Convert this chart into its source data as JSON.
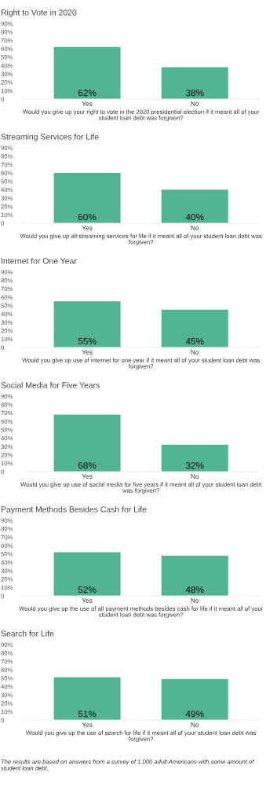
{
  "chart_data": [
    {
      "type": "bar",
      "title": "Right to Vote in 2020",
      "xlabel": "Would you give up your right to vote in the 2020 presidential election if it meant all of your student loan debt was forgiven?",
      "categories": [
        "Yes",
        "No"
      ],
      "values": [
        62,
        38
      ],
      "value_labels": [
        "62%",
        "38%"
      ],
      "color": "#52b592",
      "ylim": [
        0,
        90
      ],
      "yticks": [
        0,
        {
          "value": 10,
          "label": "10%"
        },
        {
          "value": 20,
          "label": "20%"
        },
        {
          "value": 30,
          "label": "30%"
        },
        {
          "value": 40,
          "label": "40%"
        },
        {
          "value": 50,
          "label": "50%"
        },
        {
          "value": 60,
          "label": "60%"
        },
        {
          "value": 70,
          "label": "70%"
        },
        {
          "value": 80,
          "label": "80%"
        },
        {
          "value": 90,
          "label": "90%"
        }
      ],
      "grid": false,
      "legend": false
    },
    {
      "type": "bar",
      "title": "Streaming Services for Life",
      "xlabel": "Would you give up all streaming services for life if it meant all of your student loan debt was forgiven?",
      "categories": [
        "Yes",
        "No"
      ],
      "values": [
        60,
        40
      ],
      "value_labels": [
        "60%",
        "40%"
      ],
      "color": "#52b592",
      "ylim": [
        0,
        90
      ],
      "yticks": [
        0,
        {
          "value": 10,
          "label": "10%"
        },
        {
          "value": 20,
          "label": "20%"
        },
        {
          "value": 30,
          "label": "30%"
        },
        {
          "value": 40,
          "label": "40%"
        },
        {
          "value": 50,
          "label": "50%"
        },
        {
          "value": 60,
          "label": "60%"
        },
        {
          "value": 70,
          "label": "70%"
        },
        {
          "value": 80,
          "label": "80%"
        },
        {
          "value": 90,
          "label": "90%"
        }
      ],
      "grid": false,
      "legend": false
    },
    {
      "type": "bar",
      "title": "Internet for One Year",
      "xlabel": "Would you give up use of internet for one year if it meant all of your student loan debt was forgiven?",
      "categories": [
        "Yes",
        "No"
      ],
      "values": [
        55,
        45
      ],
      "value_labels": [
        "55%",
        "45%"
      ],
      "color": "#52b592",
      "ylim": [
        0,
        90
      ],
      "yticks": [
        0,
        {
          "value": 10,
          "label": "10%"
        },
        {
          "value": 20,
          "label": "20%"
        },
        {
          "value": 30,
          "label": "30%"
        },
        {
          "value": 40,
          "label": "40%"
        },
        {
          "value": 50,
          "label": "50%"
        },
        {
          "value": 60,
          "label": "60%"
        },
        {
          "value": 70,
          "label": "70%"
        },
        {
          "value": 80,
          "label": "80%"
        },
        {
          "value": 90,
          "label": "90%"
        }
      ],
      "grid": false,
      "legend": false
    },
    {
      "type": "bar",
      "title": "Social Media for Five Years",
      "xlabel": "Would you give up use of social media for five years if it meant all of your student loan debt was forgiven?",
      "categories": [
        "Yes",
        "No"
      ],
      "values": [
        68,
        32
      ],
      "value_labels": [
        "68%",
        "32%"
      ],
      "color": "#52b592",
      "ylim": [
        0,
        90
      ],
      "yticks": [
        0,
        {
          "value": 10,
          "label": "10%"
        },
        {
          "value": 20,
          "label": "20%"
        },
        {
          "value": 30,
          "label": "30%"
        },
        {
          "value": 40,
          "label": "40%"
        },
        {
          "value": 50,
          "label": "50%"
        },
        {
          "value": 60,
          "label": "60%"
        },
        {
          "value": 70,
          "label": "70%"
        },
        {
          "value": 80,
          "label": "80%"
        },
        {
          "value": 90,
          "label": "90%"
        }
      ],
      "grid": false,
      "legend": false
    },
    {
      "type": "bar",
      "title": "Payment Methods Besides Cash for Life",
      "xlabel": "Would you give up the use of all payment methods besides cash for life if it meant all of your student loan debt was forgiven?",
      "categories": [
        "Yes",
        "No"
      ],
      "values": [
        52,
        48
      ],
      "value_labels": [
        "52%",
        "48%"
      ],
      "color": "#52b592",
      "ylim": [
        0,
        90
      ],
      "yticks": [
        0,
        {
          "value": 10,
          "label": "10%"
        },
        {
          "value": 20,
          "label": "20%"
        },
        {
          "value": 30,
          "label": "30%"
        },
        {
          "value": 40,
          "label": "40%"
        },
        {
          "value": 50,
          "label": "50%"
        },
        {
          "value": 60,
          "label": "60%"
        },
        {
          "value": 70,
          "label": "70%"
        },
        {
          "value": 80,
          "label": "80%"
        },
        {
          "value": 90,
          "label": "90%"
        }
      ],
      "grid": false,
      "legend": false
    },
    {
      "type": "bar",
      "title": "Search for Life",
      "xlabel": "Would you give up the use of search for life if it meant all of your student loan debt was forgiven?",
      "categories": [
        "Yes",
        "No"
      ],
      "values": [
        51,
        49
      ],
      "value_labels": [
        "51%",
        "49%"
      ],
      "color": "#52b592",
      "ylim": [
        0,
        90
      ],
      "yticks": [
        0,
        {
          "value": 10,
          "label": "10%"
        },
        {
          "value": 20,
          "label": "20%"
        },
        {
          "value": 30,
          "label": "30%"
        },
        {
          "value": 40,
          "label": "40%"
        },
        {
          "value": 50,
          "label": "50%"
        },
        {
          "value": 60,
          "label": "60%"
        },
        {
          "value": 70,
          "label": "70%"
        },
        {
          "value": 80,
          "label": "80%"
        },
        {
          "value": 90,
          "label": "90%"
        }
      ],
      "grid": false,
      "legend": false,
      "annotations": [
        "The results are based on answers from a survey of 1,000 adult Americans with some amount of student loan debt."
      ]
    }
  ]
}
